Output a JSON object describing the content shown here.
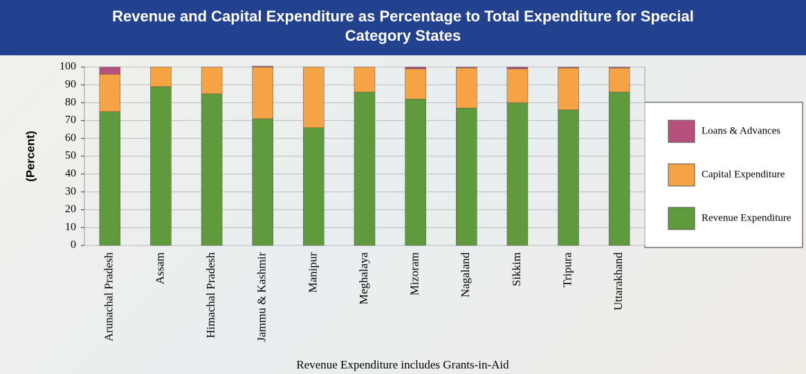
{
  "chart_data": {
    "type": "stacked_bar",
    "title": "Revenue and Capital Expenditure as Percentage to Total Expenditure for Special Category States",
    "y_label": "(Percent)",
    "note": "Revenue Expenditure includes Grants-in-Aid",
    "categories": [
      "Arunachal Pradesh",
      "Assam",
      "Himachal Pradesh",
      "Jammu & Kashmir",
      "Manipur",
      "Meghalaya",
      "Mizoram",
      "Nagaland",
      "Sikkim",
      "Tripura",
      "Uttarakhand"
    ],
    "series": [
      {
        "name": "Revenue Expenditure",
        "color": "#5f9a3c",
        "values": [
          75,
          89,
          85,
          71,
          66,
          86,
          82,
          77,
          80,
          76,
          86
        ]
      },
      {
        "name": "Capital Expenditure",
        "color": "#f5a345",
        "values": [
          21,
          11,
          15,
          29,
          34,
          14,
          17,
          22.5,
          19,
          23.5,
          13.5
        ]
      },
      {
        "name": "Loans & Advances",
        "color": "#b8507e",
        "values": [
          4,
          0,
          0,
          0.5,
          0,
          0,
          1,
          0.5,
          1,
          0.5,
          0.5
        ]
      }
    ],
    "ylim": [
      0,
      100
    ],
    "yticks": [
      0,
      10,
      20,
      30,
      40,
      50,
      60,
      70,
      80,
      90,
      100
    ],
    "grid": true,
    "legend": "right"
  }
}
